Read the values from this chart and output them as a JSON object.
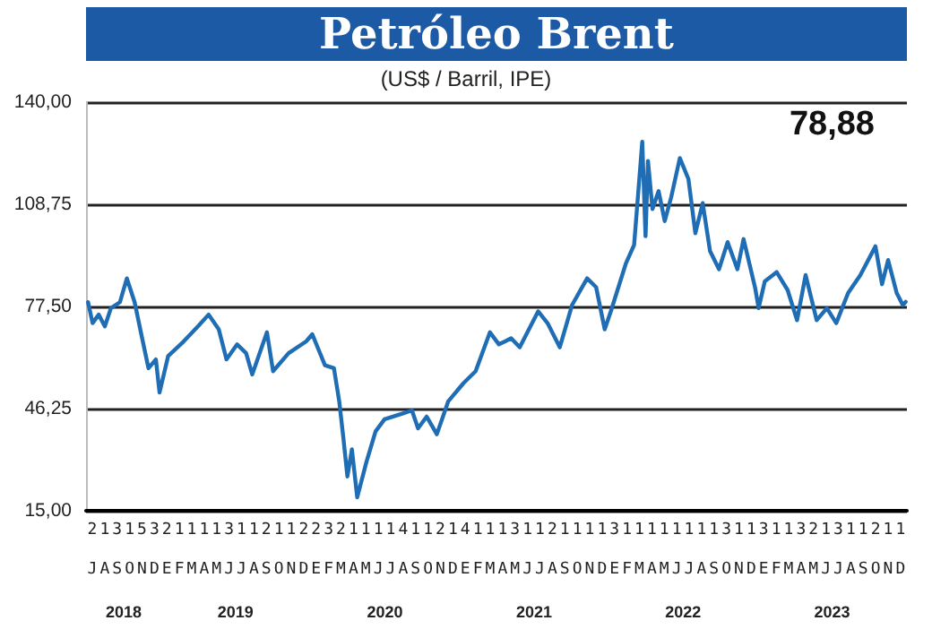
{
  "chart_data": {
    "type": "line",
    "title": "Petróleo Brent",
    "subtitle": "(US$ / Barril, IPE)",
    "annotations": [
      "78,88",
      "213153211113112112232111141121411131121111311111111311311321311211",
      "JASONDEFMAMJJASONDEFMAMJJASONDEFMAMJJASONDEFMAMJJASONDEFMAMJJASOND"
    ],
    "x": [
      "2018-07-06",
      "2018-07-17",
      "2018-08-01",
      "2018-08-16",
      "2018-08-31",
      "2018-09-22",
      "2018-10-09",
      "2018-10-28",
      "2018-11-17",
      "2018-12-01",
      "2018-12-19",
      "2018-12-28",
      "2019-01-18",
      "2019-02-25",
      "2019-04-01",
      "2019-04-27",
      "2019-05-22",
      "2019-06-10",
      "2019-07-06",
      "2019-07-28",
      "2019-08-12",
      "2019-09-17",
      "2019-10-02",
      "2019-11-09",
      "2019-12-22",
      "2020-01-06",
      "2020-02-06",
      "2020-02-28",
      "2020-03-12",
      "2020-03-22",
      "2020-04-01",
      "2020-04-12",
      "2020-04-25",
      "2020-05-18",
      "2020-06-09",
      "2020-07-01",
      "2020-08-15",
      "2020-09-06",
      "2020-09-21",
      "2020-10-12",
      "2020-11-06",
      "2020-12-04",
      "2021-01-10",
      "2021-02-09",
      "2021-03-16",
      "2021-04-07",
      "2021-04-22",
      "2021-05-07",
      "2021-05-28",
      "2021-07-12",
      "2021-08-04",
      "2021-09-03",
      "2021-10-03",
      "2021-11-09",
      "2021-12-01",
      "2021-12-22",
      "2022-01-06",
      "2022-02-12",
      "2022-03-04",
      "2022-03-24",
      "2022-04-01",
      "2022-04-07",
      "2022-04-18",
      "2022-05-03",
      "2022-05-18",
      "2022-06-03",
      "2022-06-24",
      "2022-07-15",
      "2022-08-01",
      "2022-08-19",
      "2022-09-06",
      "2022-09-28",
      "2022-10-19",
      "2022-11-12",
      "2022-11-27",
      "2022-12-25",
      "2023-01-03",
      "2023-01-18",
      "2023-02-16",
      "2023-03-15",
      "2023-04-07",
      "2023-04-28",
      "2023-05-25",
      "2023-06-19",
      "2023-07-12",
      "2023-08-10",
      "2023-09-09",
      "2023-10-16",
      "2023-11-01",
      "2023-11-16",
      "2023-12-07",
      "2023-12-22",
      "2023-12-29"
    ],
    "series": [
      {
        "color": "#1f6db5",
        "values": [
          78.8,
          72.4,
          75,
          71.4,
          77,
          78.8,
          86.1,
          78.8,
          66.8,
          58.6,
          61.3,
          51.2,
          62.3,
          66.8,
          71.4,
          75,
          70.5,
          61.3,
          65.9,
          63.2,
          56.7,
          69.6,
          57.7,
          63.2,
          66.8,
          69,
          59.5,
          58.6,
          48.5,
          37.4,
          25.5,
          33.8,
          19.1,
          30.1,
          39.3,
          43,
          44.8,
          45.7,
          40.2,
          43.8,
          38.4,
          48.5,
          54,
          57.7,
          69.6,
          65.9,
          66.8,
          67.8,
          65,
          76,
          72.4,
          65,
          77.9,
          86.1,
          83.4,
          70.5,
          76,
          90.7,
          96.3,
          127.9,
          99,
          122,
          107.3,
          112.8,
          103.6,
          111,
          122.9,
          116.5,
          99.9,
          109.1,
          94.4,
          88.9,
          97.2,
          88.9,
          98.1,
          83.4,
          77,
          85.2,
          88,
          82.5,
          73.3,
          87.1,
          73.3,
          77,
          72.4,
          81.6,
          87.1,
          95.9,
          84.3,
          91.7,
          81.6,
          77.9,
          78.9
        ]
      }
    ],
    "xlim": [
      "2018-07-01",
      "2024-01-01"
    ],
    "xticks": [
      {
        "value": "2018-10-01",
        "label": "2018"
      },
      {
        "value": "2019-07-02",
        "label": "2019"
      },
      {
        "value": "2020-07-02",
        "label": "2020"
      },
      {
        "value": "2021-07-02",
        "label": "2021"
      },
      {
        "value": "2022-07-02",
        "label": "2022"
      },
      {
        "value": "2023-07-02",
        "label": "2023"
      }
    ],
    "ylim": [
      15,
      140
    ],
    "yticks": [
      {
        "value": 15,
        "label": "15,00"
      },
      {
        "value": 46.25,
        "label": "46,25"
      },
      {
        "value": 77.5,
        "label": "77,50"
      },
      {
        "value": 108.75,
        "label": "108,75"
      },
      {
        "value": 140,
        "label": "140,00"
      }
    ],
    "grid": "y",
    "marker": "none",
    "line_style": "solid"
  }
}
